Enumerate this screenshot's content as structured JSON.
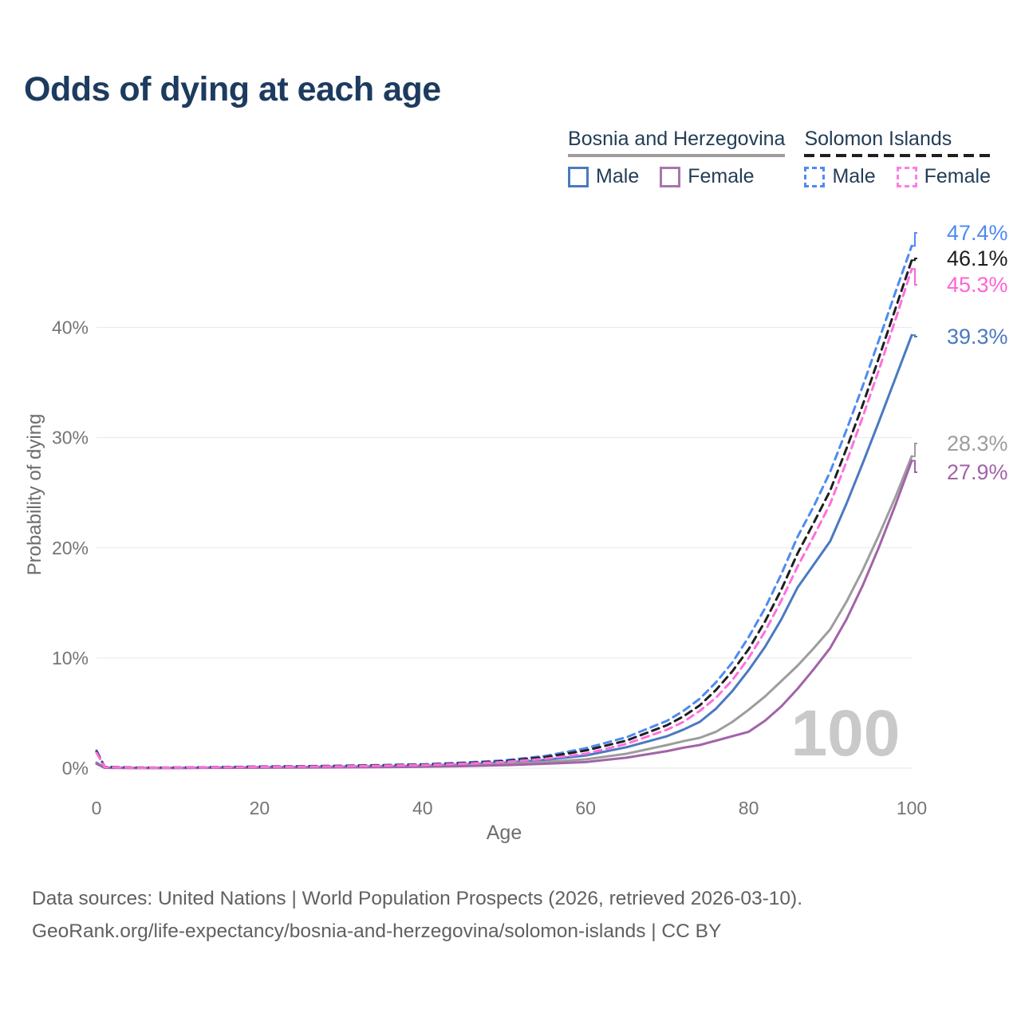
{
  "title": "Odds of dying at each age",
  "watermark": "100",
  "legend": {
    "groups": [
      {
        "country": "Bosnia and Herzegovina",
        "underline_style": "solid",
        "underline_color": "#9d9d9d",
        "items": [
          {
            "label": "Male",
            "color": "#4b79c1",
            "dashed": false
          },
          {
            "label": "Female",
            "color": "#a875ac",
            "dashed": false
          }
        ]
      },
      {
        "country": "Solomon Islands",
        "underline_style": "dashed",
        "underline_color": "#1f1f1f",
        "items": [
          {
            "label": "Male",
            "color": "#4f8af2",
            "dashed": true
          },
          {
            "label": "Female",
            "color": "#ff7ce2",
            "dashed": true
          }
        ]
      }
    ]
  },
  "end_labels": [
    {
      "series": "Solomon Islands Male",
      "flag": "solomon-islands",
      "text": "47.4%",
      "value": 47.4,
      "color": "#4f8af2"
    },
    {
      "series": "Solomon Islands Both sexes",
      "flag": "solomon-islands",
      "text": "46.1%",
      "value": 46.1,
      "color": "#1f1f1f"
    },
    {
      "series": "Solomon Islands Female",
      "flag": "solomon-islands",
      "text": "45.3%",
      "value": 45.3,
      "color": "#ff63d6"
    },
    {
      "series": "Bosnia and Herzegovina Male",
      "flag": "bosnia-and-herzegovina",
      "text": "39.3%",
      "value": 39.3,
      "color": "#4b79c1"
    },
    {
      "series": "Bosnia and Herzegovina Both sexes",
      "flag": "bosnia-and-herzegovina",
      "text": "28.3%",
      "value": 28.3,
      "color": "#9d9d9d"
    },
    {
      "series": "Bosnia and Herzegovina Female",
      "flag": "bosnia-and-herzegovina",
      "text": "27.9%",
      "value": 27.9,
      "color": "#a263a8"
    }
  ],
  "footer": {
    "line1": "Data sources: United Nations | World Population Prospects (2026, retrieved 2026-03-10).",
    "line2": "GeoRank.org/life-expectancy/bosnia-and-herzegovina/solomon-islands | CC BY"
  },
  "chart_data": {
    "type": "line",
    "title": "Odds of dying at each age",
    "xlabel": "Age",
    "ylabel": "Probability of dying",
    "xlim": [
      0,
      100
    ],
    "ylim": [
      0,
      48
    ],
    "grid": true,
    "legend_position": "top-right",
    "xticks": [
      0,
      20,
      40,
      60,
      80,
      100
    ],
    "yticks": [
      {
        "value": 0,
        "label": "0%"
      },
      {
        "value": 10,
        "label": "10%"
      },
      {
        "value": 20,
        "label": "20%"
      },
      {
        "value": 30,
        "label": "30%"
      },
      {
        "value": 40,
        "label": "40%"
      }
    ],
    "x": [
      0,
      1,
      5,
      10,
      15,
      20,
      25,
      30,
      35,
      40,
      45,
      50,
      55,
      60,
      65,
      70,
      72,
      74,
      76,
      78,
      80,
      82,
      84,
      86,
      88,
      90,
      92,
      94,
      96,
      98,
      100
    ],
    "series": [
      {
        "name": "Bosnia and Herzegovina Male",
        "country": "Bosnia and Herzegovina",
        "sex": "male",
        "line": "solid",
        "color": "#4b79c1",
        "end_value_pct": 39.3,
        "values": [
          0.5,
          0.05,
          0.02,
          0.02,
          0.05,
          0.08,
          0.1,
          0.12,
          0.16,
          0.22,
          0.32,
          0.5,
          0.75,
          1.15,
          1.9,
          2.9,
          3.5,
          4.2,
          5.4,
          7.0,
          8.9,
          11.0,
          13.5,
          16.4,
          18.5,
          20.6,
          24.0,
          27.7,
          31.5,
          35.4,
          39.3
        ]
      },
      {
        "name": "Bosnia and Herzegovina Both sexes",
        "country": "Bosnia and Herzegovina",
        "sex": "both",
        "line": "solid",
        "color": "#9d9d9d",
        "end_value_pct": 28.3,
        "values": [
          0.45,
          0.04,
          0.015,
          0.015,
          0.04,
          0.06,
          0.08,
          0.1,
          0.13,
          0.17,
          0.25,
          0.38,
          0.55,
          0.8,
          1.3,
          2.1,
          2.45,
          2.75,
          3.3,
          4.2,
          5.3,
          6.5,
          7.9,
          9.3,
          10.9,
          12.6,
          15.1,
          18.0,
          21.2,
          24.6,
          28.3
        ]
      },
      {
        "name": "Bosnia and Herzegovina Female",
        "country": "Bosnia and Herzegovina",
        "sex": "female",
        "line": "solid",
        "color": "#a263a8",
        "end_value_pct": 27.9,
        "values": [
          0.4,
          0.03,
          0.01,
          0.012,
          0.03,
          0.04,
          0.05,
          0.07,
          0.09,
          0.12,
          0.18,
          0.27,
          0.4,
          0.55,
          0.95,
          1.55,
          1.85,
          2.1,
          2.5,
          2.9,
          3.3,
          4.3,
          5.6,
          7.2,
          9.0,
          10.9,
          13.5,
          16.6,
          20.1,
          23.9,
          27.9
        ]
      },
      {
        "name": "Solomon Islands Male",
        "country": "Solomon Islands",
        "sex": "male",
        "line": "dashed",
        "color": "#4f8af2",
        "end_value_pct": 47.4,
        "values": [
          1.6,
          0.12,
          0.04,
          0.05,
          0.1,
          0.15,
          0.18,
          0.22,
          0.28,
          0.35,
          0.5,
          0.7,
          1.1,
          1.8,
          2.8,
          4.3,
          5.2,
          6.3,
          7.8,
          9.6,
          11.9,
          14.5,
          17.6,
          21.0,
          23.8,
          26.9,
          30.7,
          34.7,
          38.9,
          43.2,
          47.4
        ]
      },
      {
        "name": "Solomon Islands Both sexes",
        "country": "Solomon Islands",
        "sex": "both",
        "line": "dashed",
        "color": "#1f1f1f",
        "end_value_pct": 46.1,
        "values": [
          1.5,
          0.11,
          0.04,
          0.05,
          0.09,
          0.13,
          0.16,
          0.2,
          0.25,
          0.32,
          0.45,
          0.63,
          1.0,
          1.6,
          2.5,
          3.9,
          4.7,
          5.7,
          7.1,
          8.8,
          10.8,
          13.3,
          16.2,
          19.5,
          22.3,
          25.2,
          29.0,
          33.0,
          37.3,
          41.7,
          46.1
        ]
      },
      {
        "name": "Solomon Islands Female",
        "country": "Solomon Islands",
        "sex": "female",
        "line": "dashed",
        "color": "#ff6fdb",
        "end_value_pct": 45.3,
        "values": [
          1.4,
          0.1,
          0.03,
          0.04,
          0.08,
          0.11,
          0.14,
          0.17,
          0.22,
          0.28,
          0.4,
          0.56,
          0.85,
          1.3,
          2.2,
          3.5,
          4.2,
          5.2,
          6.4,
          8.0,
          10.0,
          12.4,
          15.2,
          18.3,
          21.1,
          24.0,
          27.8,
          31.9,
          36.2,
          40.7,
          45.3
        ]
      }
    ]
  }
}
